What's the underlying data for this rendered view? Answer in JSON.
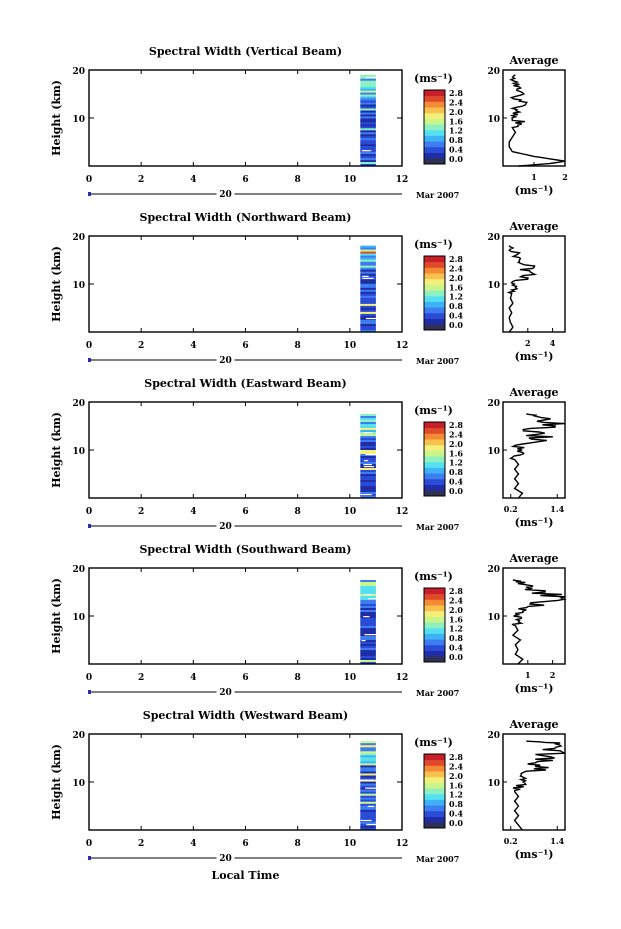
{
  "figure": {
    "xlabel": "Local Time",
    "date_label": "Mar 2007",
    "day_label": "20",
    "colorbar_unit": "(ms⁻¹)",
    "colorbar_ticks": [
      "0.0",
      "0.4",
      "0.8",
      "1.2",
      "1.6",
      "2.0",
      "2.4",
      "2.8"
    ],
    "avg_title": "Average",
    "avg_xlabel": "(ms⁻¹)"
  },
  "colors": {
    "scale": [
      "#303050",
      "#1f2ea6",
      "#2a4bd6",
      "#3d7df0",
      "#3fb1f6",
      "#54e0f0",
      "#8ef0c0",
      "#c9f58a",
      "#f3f07a",
      "#f8c04c",
      "#f48a34",
      "#e04a2c",
      "#c81e2a"
    ]
  },
  "chart_data": [
    {
      "type": "heatmap",
      "title": "Spectral Width (Vertical Beam)",
      "ylabel": "Height (km)",
      "x_ticks": [
        "0",
        "2",
        "4",
        "6",
        "8",
        "10",
        "12"
      ],
      "y_ticks": [
        "10",
        "20"
      ],
      "xlim": [
        0,
        12
      ],
      "ylim": [
        0,
        20
      ],
      "data_x_range": [
        10.4,
        11.0
      ],
      "data_y_range": [
        0,
        19
      ],
      "avg": {
        "x_ticks": [
          "1",
          "2"
        ],
        "xlim": [
          0,
          2
        ],
        "profile": [
          [
            0.5,
            0
          ],
          [
            1.5,
            0.5
          ],
          [
            2.0,
            1
          ],
          [
            1.0,
            2
          ],
          [
            0.3,
            3
          ],
          [
            0.2,
            4
          ],
          [
            0.2,
            5
          ],
          [
            0.3,
            6
          ],
          [
            0.4,
            7
          ],
          [
            0.3,
            8
          ],
          [
            0.6,
            9
          ],
          [
            0.3,
            10
          ],
          [
            0.4,
            11
          ],
          [
            0.5,
            12
          ],
          [
            0.6,
            13
          ],
          [
            0.4,
            14
          ],
          [
            0.6,
            15
          ],
          [
            0.4,
            16
          ],
          [
            0.5,
            17
          ],
          [
            0.3,
            18
          ],
          [
            0.4,
            19
          ]
        ]
      }
    },
    {
      "type": "heatmap",
      "title": "Spectral Width (Northward Beam)",
      "ylabel": "Height (km)",
      "x_ticks": [
        "0",
        "2",
        "4",
        "6",
        "8",
        "10",
        "12"
      ],
      "y_ticks": [
        "10",
        "20"
      ],
      "xlim": [
        0,
        12
      ],
      "ylim": [
        0,
        20
      ],
      "data_x_range": [
        10.4,
        11.0
      ],
      "data_y_range": [
        0,
        18
      ],
      "avg": {
        "x_ticks": [
          "2",
          "4"
        ],
        "xlim": [
          0,
          5
        ],
        "profile": [
          [
            0.5,
            0
          ],
          [
            0.8,
            1
          ],
          [
            0.6,
            2
          ],
          [
            0.5,
            3
          ],
          [
            0.7,
            4
          ],
          [
            0.5,
            5
          ],
          [
            0.8,
            6
          ],
          [
            0.6,
            7
          ],
          [
            0.7,
            8
          ],
          [
            0.9,
            9
          ],
          [
            0.7,
            10
          ],
          [
            1.5,
            11
          ],
          [
            2.0,
            12
          ],
          [
            1.8,
            13
          ],
          [
            2.2,
            14
          ],
          [
            1.5,
            15
          ],
          [
            1.2,
            16
          ],
          [
            0.8,
            17
          ],
          [
            0.5,
            18
          ]
        ]
      }
    },
    {
      "type": "heatmap",
      "title": "Spectral Width (Eastward Beam)",
      "ylabel": "Height (km)",
      "x_ticks": [
        "0",
        "2",
        "4",
        "6",
        "8",
        "10",
        "12"
      ],
      "y_ticks": [
        "10",
        "20"
      ],
      "xlim": [
        0,
        12
      ],
      "ylim": [
        0,
        20
      ],
      "data_x_range": [
        10.4,
        11.0
      ],
      "data_y_range": [
        0,
        17.5
      ],
      "avg": {
        "x_ticks": [
          "0.2",
          "1.4"
        ],
        "xlim": [
          0,
          1.6
        ],
        "profile": [
          [
            0.4,
            0
          ],
          [
            0.5,
            1
          ],
          [
            0.3,
            2
          ],
          [
            0.4,
            3
          ],
          [
            0.3,
            4
          ],
          [
            0.4,
            5
          ],
          [
            0.3,
            6
          ],
          [
            0.4,
            7
          ],
          [
            0.3,
            8
          ],
          [
            0.4,
            9
          ],
          [
            0.5,
            10
          ],
          [
            0.4,
            11
          ],
          [
            1.2,
            12
          ],
          [
            0.9,
            13
          ],
          [
            0.7,
            14
          ],
          [
            1.1,
            15
          ],
          [
            1.3,
            16
          ],
          [
            0.9,
            17
          ],
          [
            0.6,
            17.5
          ]
        ]
      }
    },
    {
      "type": "heatmap",
      "title": "Spectral Width (Southward Beam)",
      "ylabel": "Height (km)",
      "x_ticks": [
        "0",
        "2",
        "4",
        "6",
        "8",
        "10",
        "12"
      ],
      "y_ticks": [
        "10",
        "20"
      ],
      "xlim": [
        0,
        12
      ],
      "ylim": [
        0,
        20
      ],
      "data_x_range": [
        10.4,
        11.0
      ],
      "data_y_range": [
        0,
        17.5
      ],
      "avg": {
        "x_ticks": [
          "1",
          "2"
        ],
        "xlim": [
          0,
          2.5
        ],
        "profile": [
          [
            0.6,
            0
          ],
          [
            0.8,
            1
          ],
          [
            0.5,
            2
          ],
          [
            0.6,
            3
          ],
          [
            0.5,
            4
          ],
          [
            0.7,
            5
          ],
          [
            0.4,
            6
          ],
          [
            0.6,
            7
          ],
          [
            0.5,
            8
          ],
          [
            0.7,
            9
          ],
          [
            0.5,
            10
          ],
          [
            0.8,
            11
          ],
          [
            1.2,
            12
          ],
          [
            1.6,
            13
          ],
          [
            2.3,
            14
          ],
          [
            1.5,
            15
          ],
          [
            1.0,
            16
          ],
          [
            0.7,
            17
          ],
          [
            0.4,
            17.5
          ]
        ]
      }
    },
    {
      "type": "heatmap",
      "title": "Spectral Width (Westward Beam)",
      "ylabel": "Height (km)",
      "x_ticks": [
        "0",
        "2",
        "4",
        "6",
        "8",
        "10",
        "12"
      ],
      "y_ticks": [
        "10",
        "20"
      ],
      "xlim": [
        0,
        12
      ],
      "ylim": [
        0,
        20
      ],
      "data_x_range": [
        10.4,
        11.0
      ],
      "data_y_range": [
        0,
        18.5
      ],
      "avg": {
        "x_ticks": [
          "0.2",
          "1.4"
        ],
        "xlim": [
          0,
          1.6
        ],
        "profile": [
          [
            0.5,
            0
          ],
          [
            0.4,
            1
          ],
          [
            0.3,
            2
          ],
          [
            0.4,
            3
          ],
          [
            0.3,
            4
          ],
          [
            0.4,
            5
          ],
          [
            0.3,
            6
          ],
          [
            0.4,
            7
          ],
          [
            0.3,
            8
          ],
          [
            0.4,
            9
          ],
          [
            0.5,
            10
          ],
          [
            0.4,
            11
          ],
          [
            0.8,
            12
          ],
          [
            1.0,
            13
          ],
          [
            0.7,
            14
          ],
          [
            1.2,
            15
          ],
          [
            1.4,
            16
          ],
          [
            1.0,
            17
          ],
          [
            1.3,
            18
          ],
          [
            0.6,
            18.5
          ]
        ]
      }
    }
  ]
}
